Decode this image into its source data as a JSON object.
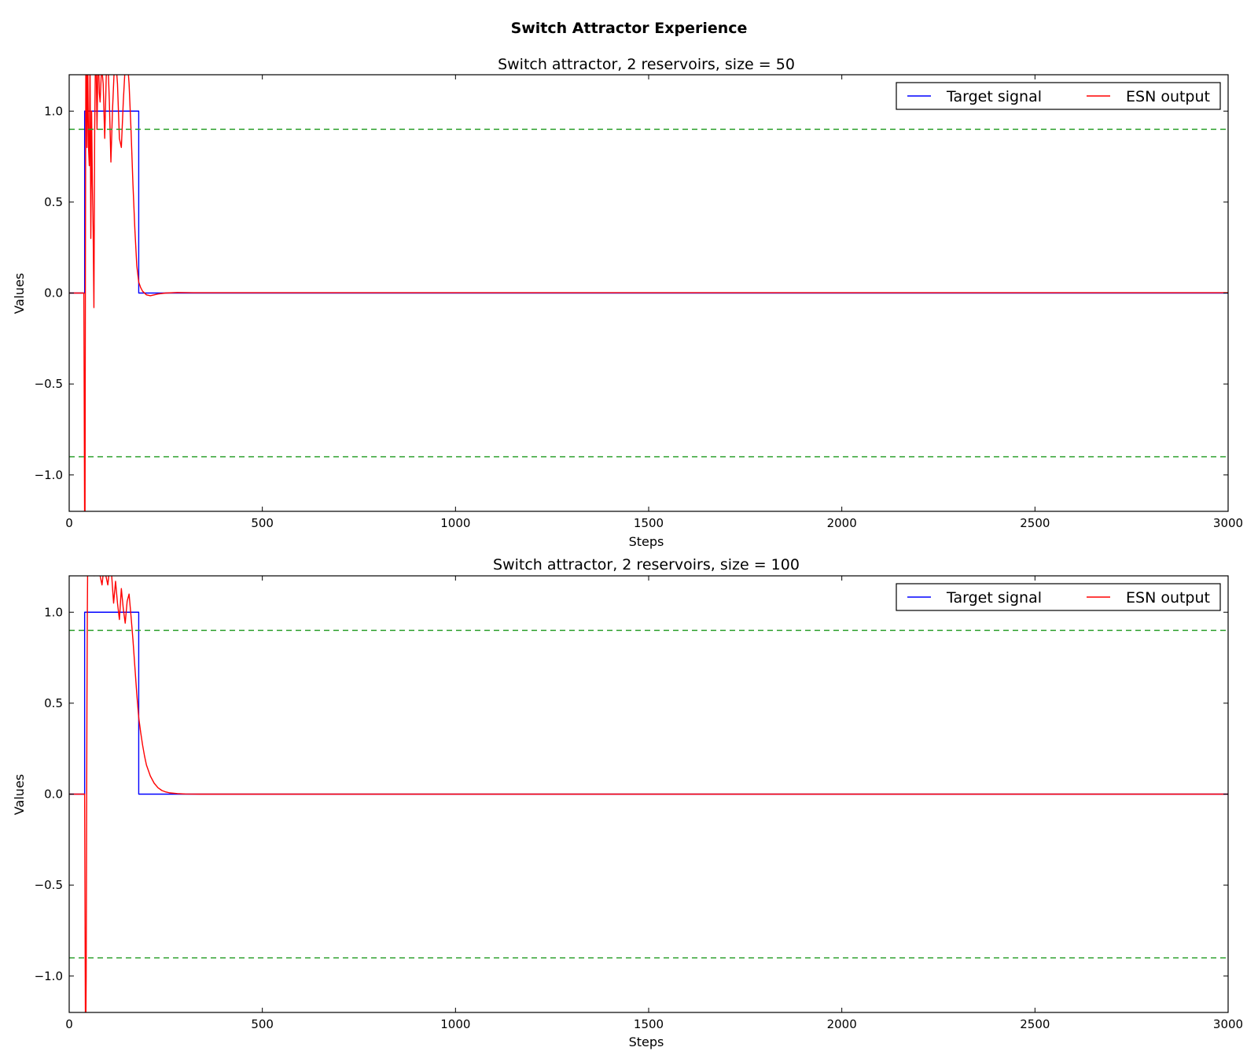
{
  "figure": {
    "suptitle": "Switch Attractor Experience"
  },
  "chart_data": [
    {
      "type": "line",
      "title": "Switch attractor, 2 reservoirs, size = 50",
      "xlabel": "Steps",
      "ylabel": "Values",
      "xlim": [
        0,
        3000
      ],
      "ylim": [
        -1.2,
        1.2
      ],
      "xticks": [
        0,
        500,
        1000,
        1500,
        2000,
        2500,
        3000
      ],
      "xtick_labels": [
        "0",
        "500",
        "1000",
        "1500",
        "2000",
        "2500",
        "3000"
      ],
      "yticks": [
        -1.0,
        -0.5,
        0.0,
        0.5,
        1.0
      ],
      "ytick_labels": [
        "−1.0",
        "−0.5",
        "0.0",
        "0.5",
        "1.0"
      ],
      "grid": false,
      "legend": {
        "position": "top-right",
        "ncol": 2
      },
      "hlines": [
        {
          "y": 0.9,
          "style": "dashed",
          "color": "#2ca02c"
        },
        {
          "y": -0.9,
          "style": "dashed",
          "color": "#2ca02c"
        }
      ],
      "series": [
        {
          "name": "Target signal",
          "color": "#0000ff",
          "x": [
            0,
            40,
            40,
            180,
            180,
            3000
          ],
          "y": [
            0,
            0,
            1,
            1,
            0,
            0
          ]
        },
        {
          "name": "ESN output",
          "color": "#ff0000",
          "x": [
            0,
            38,
            40,
            41,
            42,
            43,
            44,
            45,
            46,
            48,
            50,
            52,
            54,
            56,
            58,
            60,
            62,
            64,
            66,
            68,
            70,
            72,
            74,
            76,
            78,
            80,
            84,
            88,
            92,
            96,
            100,
            104,
            108,
            112,
            116,
            120,
            125,
            130,
            135,
            140,
            145,
            150,
            155,
            160,
            165,
            170,
            175,
            180,
            185,
            190,
            200,
            210,
            220,
            230,
            250,
            280,
            320,
            3000
          ],
          "y": [
            0,
            0,
            -1.3,
            -1.2,
            0.2,
            1.2,
            1.3,
            1.2,
            0.8,
            1.3,
            0.8,
            0.7,
            1.3,
            0.3,
            1.0,
            0.6,
            0.35,
            -0.08,
            0.9,
            1.3,
            1.25,
            0.9,
            1.2,
            1.3,
            1.1,
            1.05,
            1.25,
            1.15,
            0.85,
            1.2,
            1.3,
            1.05,
            0.72,
            1.0,
            1.2,
            1.3,
            1.15,
            0.85,
            0.8,
            1.05,
            1.25,
            1.3,
            1.15,
            0.9,
            0.6,
            0.35,
            0.15,
            0.06,
            0.03,
            0.01,
            -0.01,
            -0.015,
            -0.01,
            -0.005,
            0.0,
            0.003,
            0.002,
            0.002
          ]
        }
      ]
    },
    {
      "type": "line",
      "title": "Switch attractor, 2 reservoirs, size = 100",
      "xlabel": "Steps",
      "ylabel": "Values",
      "xlim": [
        0,
        3000
      ],
      "ylim": [
        -1.2,
        1.2
      ],
      "xticks": [
        0,
        500,
        1000,
        1500,
        2000,
        2500,
        3000
      ],
      "xtick_labels": [
        "0",
        "500",
        "1000",
        "1500",
        "2000",
        "2500",
        "3000"
      ],
      "yticks": [
        -1.0,
        -0.5,
        0.0,
        0.5,
        1.0
      ],
      "ytick_labels": [
        "−1.0",
        "−0.5",
        "0.0",
        "0.5",
        "1.0"
      ],
      "grid": false,
      "legend": {
        "position": "top-right",
        "ncol": 2
      },
      "hlines": [
        {
          "y": 0.9,
          "style": "dashed",
          "color": "#2ca02c"
        },
        {
          "y": -0.9,
          "style": "dashed",
          "color": "#2ca02c"
        }
      ],
      "series": [
        {
          "name": "Target signal",
          "color": "#0000ff",
          "x": [
            0,
            40,
            40,
            180,
            180,
            3000
          ],
          "y": [
            0,
            0,
            1,
            1,
            0,
            0
          ]
        },
        {
          "name": "ESN output",
          "color": "#ff0000",
          "x": [
            0,
            40,
            42,
            43,
            44,
            45,
            46,
            47,
            48,
            49,
            50,
            52,
            55,
            60,
            65,
            70,
            75,
            80,
            85,
            90,
            95,
            100,
            105,
            110,
            115,
            120,
            125,
            130,
            135,
            140,
            145,
            150,
            155,
            160,
            165,
            170,
            175,
            180,
            185,
            190,
            195,
            200,
            210,
            220,
            230,
            240,
            250,
            260,
            280,
            300,
            340,
            3000
          ],
          "y": [
            0,
            0,
            -1.3,
            -1.3,
            -1.0,
            -0.2,
            0.5,
            1.0,
            1.3,
            1.3,
            1.3,
            1.3,
            1.3,
            1.25,
            1.2,
            1.3,
            1.3,
            1.2,
            1.15,
            1.25,
            1.2,
            1.15,
            1.25,
            1.2,
            1.05,
            1.17,
            1.05,
            0.96,
            1.13,
            1.02,
            0.94,
            1.06,
            1.1,
            0.98,
            0.85,
            0.7,
            0.55,
            0.42,
            0.34,
            0.27,
            0.21,
            0.16,
            0.1,
            0.06,
            0.035,
            0.02,
            0.012,
            0.007,
            0.003,
            0.001,
            0.0,
            0.0
          ]
        }
      ]
    }
  ]
}
